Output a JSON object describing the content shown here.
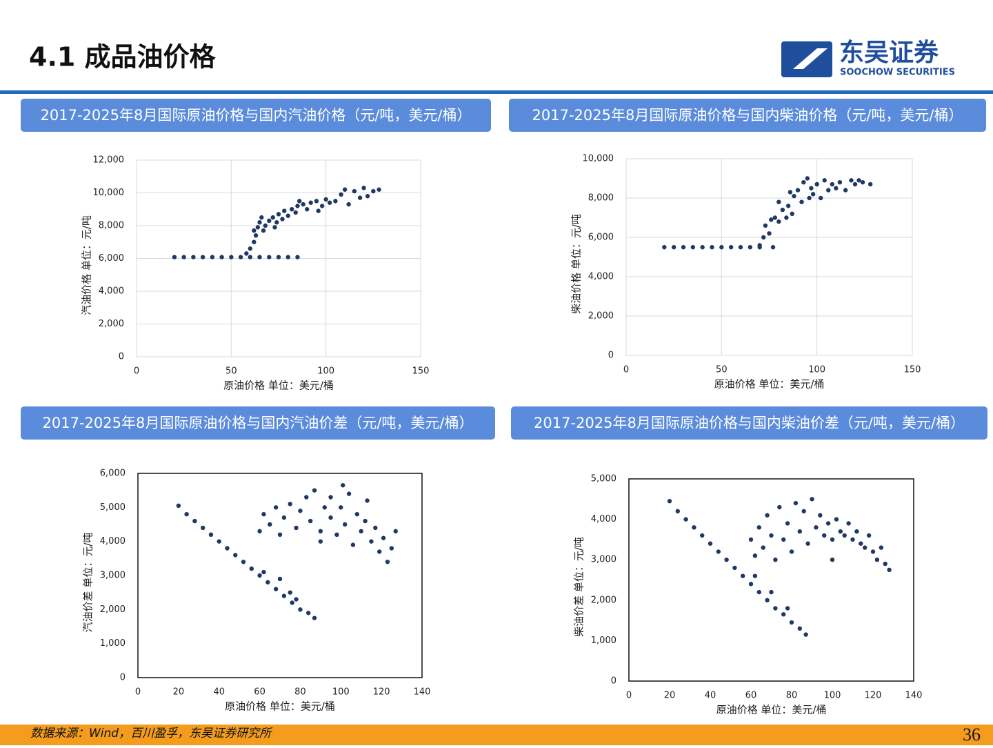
{
  "header": {
    "title": "4.1 成品油价格",
    "brand": "东吴证券",
    "brand_en": "SOOCHOW SECURITIES"
  },
  "footer": {
    "source": "数据来源：Wind，百川盈孚，东吴证券研究所",
    "page": 36
  },
  "chart_data": [
    {
      "type": "scatter",
      "title": "2017-2025年8月国际原油价格与国内汽油价格（元/吨，美元/桶）",
      "x_label": "原油价格 单位：美元/桶",
      "y_label": "汽油价格  单位：元/吨",
      "color": "#1f3864",
      "grid": true,
      "frame": false,
      "xlim": [
        0,
        150
      ],
      "xticks": [
        0,
        50,
        100,
        150
      ],
      "ylim": [
        0,
        12000
      ],
      "yticks": [
        0,
        {
          "value": 2000,
          "label": "2,000"
        },
        {
          "value": 4000,
          "label": "4,000"
        },
        {
          "value": 6000,
          "label": "6,000"
        },
        {
          "value": 8000,
          "label": "8,000"
        },
        {
          "value": 10000,
          "label": "10,000"
        },
        {
          "value": 12000,
          "label": "12,000"
        }
      ],
      "x": [
        20,
        25,
        30,
        35,
        40,
        45,
        50,
        55,
        60,
        65,
        70,
        75,
        80,
        85,
        58,
        60,
        62,
        63,
        64,
        65,
        67,
        68,
        70,
        72,
        74,
        75,
        77,
        78,
        80,
        82,
        84,
        85,
        88,
        90,
        92,
        95,
        98,
        100,
        102,
        105,
        108,
        110,
        112,
        115,
        118,
        120,
        122,
        125,
        128,
        62,
        66,
        73,
        86,
        96
      ],
      "values": [
        6080,
        6080,
        6080,
        6080,
        6080,
        6080,
        6080,
        6080,
        6080,
        6080,
        6080,
        6080,
        6080,
        6080,
        6300,
        6600,
        7000,
        7400,
        7900,
        8200,
        7700,
        8000,
        8300,
        8500,
        8200,
        8700,
        8400,
        8900,
        8600,
        9000,
        8800,
        9200,
        9300,
        9000,
        9400,
        9500,
        9200,
        9600,
        9400,
        9500,
        9900,
        10200,
        9300,
        10100,
        9700,
        10300,
        9800,
        10100,
        10200,
        7700,
        8500,
        7900,
        9500,
        8900
      ]
    },
    {
      "type": "scatter",
      "title": "2017-2025年8月国际原油价格与国内柴油价格（元/吨，美元/桶）",
      "x_label": "原油价格 单位：美元/桶",
      "y_label": "柴油价格  单位：元/吨",
      "color": "#1f3864",
      "grid": true,
      "frame": false,
      "xlim": [
        0,
        150
      ],
      "xticks": [
        0,
        50,
        100,
        150
      ],
      "ylim": [
        0,
        10000
      ],
      "yticks": [
        0,
        {
          "value": 2000,
          "label": "2,000"
        },
        {
          "value": 4000,
          "label": "4,000"
        },
        {
          "value": 6000,
          "label": "6,000"
        },
        {
          "value": 8000,
          "label": "8,000"
        },
        {
          "value": 10000,
          "label": "10,000"
        }
      ],
      "x": [
        20,
        25,
        30,
        35,
        40,
        45,
        50,
        55,
        60,
        65,
        70,
        77,
        70,
        72,
        73,
        75,
        76,
        78,
        80,
        82,
        85,
        87,
        88,
        90,
        92,
        93,
        95,
        97,
        100,
        102,
        104,
        106,
        108,
        110,
        112,
        115,
        118,
        120,
        122,
        124,
        128,
        80,
        84,
        96,
        86,
        98
      ],
      "values": [
        5500,
        5500,
        5500,
        5500,
        5500,
        5500,
        5500,
        5500,
        5500,
        5500,
        5500,
        5500,
        5600,
        6000,
        6600,
        6200,
        6900,
        7000,
        6800,
        7400,
        7600,
        7200,
        8100,
        8400,
        7800,
        8800,
        9000,
        8500,
        8700,
        8000,
        8900,
        8400,
        8700,
        8500,
        8800,
        8400,
        8900,
        8700,
        8900,
        8800,
        8700,
        7800,
        7000,
        8000,
        8300,
        8200
      ]
    },
    {
      "type": "scatter",
      "title": "2017-2025年8月国际原油价格与国内汽油价差（元/吨，美元/桶）",
      "x_label": "原油价格 单位：美元/桶",
      "y_label": "汽油价差 单位：元/吨",
      "color": "#1f3864",
      "grid": false,
      "frame": true,
      "xlim": [
        0,
        140
      ],
      "xticks": [
        0,
        20,
        40,
        60,
        80,
        100,
        120,
        140
      ],
      "ylim": [
        0,
        6000
      ],
      "yticks": [
        0,
        {
          "value": 1000,
          "label": "1,000"
        },
        {
          "value": 2000,
          "label": "2,000"
        },
        {
          "value": 3000,
          "label": "3,000"
        },
        {
          "value": 4000,
          "label": "4,000"
        },
        {
          "value": 5000,
          "label": "5,000"
        },
        {
          "value": 6000,
          "label": "6,000"
        }
      ],
      "x": [
        20,
        24,
        28,
        32,
        36,
        40,
        44,
        48,
        52,
        56,
        60,
        64,
        68,
        72,
        76,
        80,
        84,
        87,
        62,
        70,
        75,
        78,
        60,
        62,
        65,
        68,
        70,
        72,
        75,
        78,
        80,
        83,
        85,
        87,
        90,
        92,
        95,
        98,
        100,
        102,
        104,
        106,
        108,
        110,
        112,
        113,
        115,
        117,
        119,
        121,
        123,
        125,
        127,
        95,
        101,
        90
      ],
      "values": [
        5050,
        4800,
        4600,
        4400,
        4200,
        4000,
        3800,
        3600,
        3400,
        3200,
        3000,
        2800,
        2600,
        2400,
        2200,
        2000,
        1900,
        1750,
        3100,
        2900,
        2500,
        2300,
        4300,
        4800,
        4500,
        5000,
        4200,
        4700,
        5100,
        4400,
        4900,
        5300,
        4600,
        5500,
        4300,
        5000,
        4700,
        4200,
        5000,
        4500,
        5400,
        3900,
        4800,
        4300,
        4600,
        5200,
        4000,
        4400,
        3700,
        4100,
        3400,
        3800,
        4300,
        5300,
        5650,
        4000
      ]
    },
    {
      "type": "scatter",
      "title": "2017-2025年8月国际原油价格与国内柴油价差（元/吨，美元/桶）",
      "x_label": "原油价格 单位：美元/桶",
      "y_label": "柴油价差 单位：元/吨",
      "color": "#1f3864",
      "grid": false,
      "frame": true,
      "xlim": [
        0,
        140
      ],
      "xticks": [
        0,
        20,
        40,
        60,
        80,
        100,
        120,
        140
      ],
      "ylim": [
        0,
        5000
      ],
      "yticks": [
        0,
        {
          "value": 1000,
          "label": "1,000"
        },
        {
          "value": 2000,
          "label": "2,000"
        },
        {
          "value": 3000,
          "label": "3,000"
        },
        {
          "value": 4000,
          "label": "4,000"
        },
        {
          "value": 5000,
          "label": "5,000"
        }
      ],
      "x": [
        20,
        24,
        28,
        32,
        36,
        40,
        44,
        48,
        52,
        56,
        60,
        64,
        68,
        72,
        76,
        80,
        84,
        87,
        62,
        70,
        78,
        60,
        62,
        64,
        66,
        68,
        70,
        72,
        74,
        76,
        78,
        80,
        82,
        84,
        86,
        88,
        90,
        92,
        94,
        96,
        98,
        100,
        102,
        104,
        106,
        108,
        110,
        112,
        114,
        116,
        118,
        120,
        122,
        124,
        126,
        128,
        100
      ],
      "values": [
        4450,
        4200,
        4000,
        3800,
        3600,
        3400,
        3200,
        3000,
        2800,
        2600,
        2400,
        2200,
        2000,
        1800,
        1650,
        1450,
        1300,
        1150,
        2600,
        2200,
        1800,
        3500,
        3100,
        3800,
        3300,
        4100,
        3600,
        3000,
        4300,
        3500,
        3900,
        3200,
        4400,
        3700,
        4200,
        3400,
        4500,
        3800,
        4100,
        3600,
        3900,
        3500,
        4000,
        3700,
        3600,
        3900,
        3500,
        3700,
        3400,
        3300,
        3600,
        3200,
        3000,
        3300,
        2900,
        2750,
        3000
      ]
    }
  ]
}
